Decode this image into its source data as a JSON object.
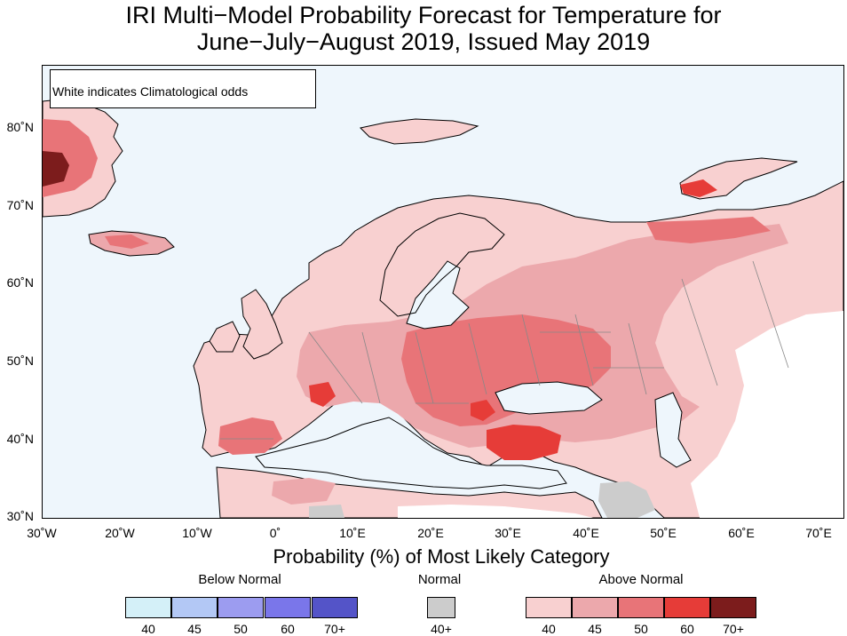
{
  "title": {
    "line1": "IRI Multi−Model Probability Forecast for Temperature for",
    "line2": "June−July−August 2019, Issued May 2019"
  },
  "map": {
    "note": "White indicates Climatological odds",
    "lat_labels": [
      "80˚N",
      "70˚N",
      "60˚N",
      "50˚N",
      "40˚N",
      "30˚N"
    ],
    "lon_labels": [
      "30˚W",
      "20˚W",
      "10˚W",
      "0˚",
      "10˚E",
      "20˚E",
      "30˚E",
      "40˚E",
      "50˚E",
      "60˚E",
      "70˚E"
    ],
    "colors": {
      "ocean": "#eef6fc",
      "climatology": "#ffffff",
      "land_outline": "#000000",
      "border": "#888888"
    }
  },
  "legend": {
    "xlabel": "Probability (%) of Most Likely Category",
    "below": {
      "title": "Below Normal",
      "labels": [
        "40",
        "45",
        "50",
        "60",
        "70+"
      ],
      "colors": [
        "#d4f0f8",
        "#b3c8f5",
        "#9c9cf0",
        "#7a76ea",
        "#5454c8"
      ]
    },
    "normal": {
      "title": "Normal",
      "labels": [
        "40+"
      ],
      "colors": [
        "#cccccc"
      ]
    },
    "above": {
      "title": "Above Normal",
      "labels": [
        "40",
        "45",
        "50",
        "60",
        "70+"
      ],
      "colors": [
        "#f8d0d0",
        "#eca8ac",
        "#e87478",
        "#e63c38",
        "#7c1c1c"
      ]
    }
  }
}
